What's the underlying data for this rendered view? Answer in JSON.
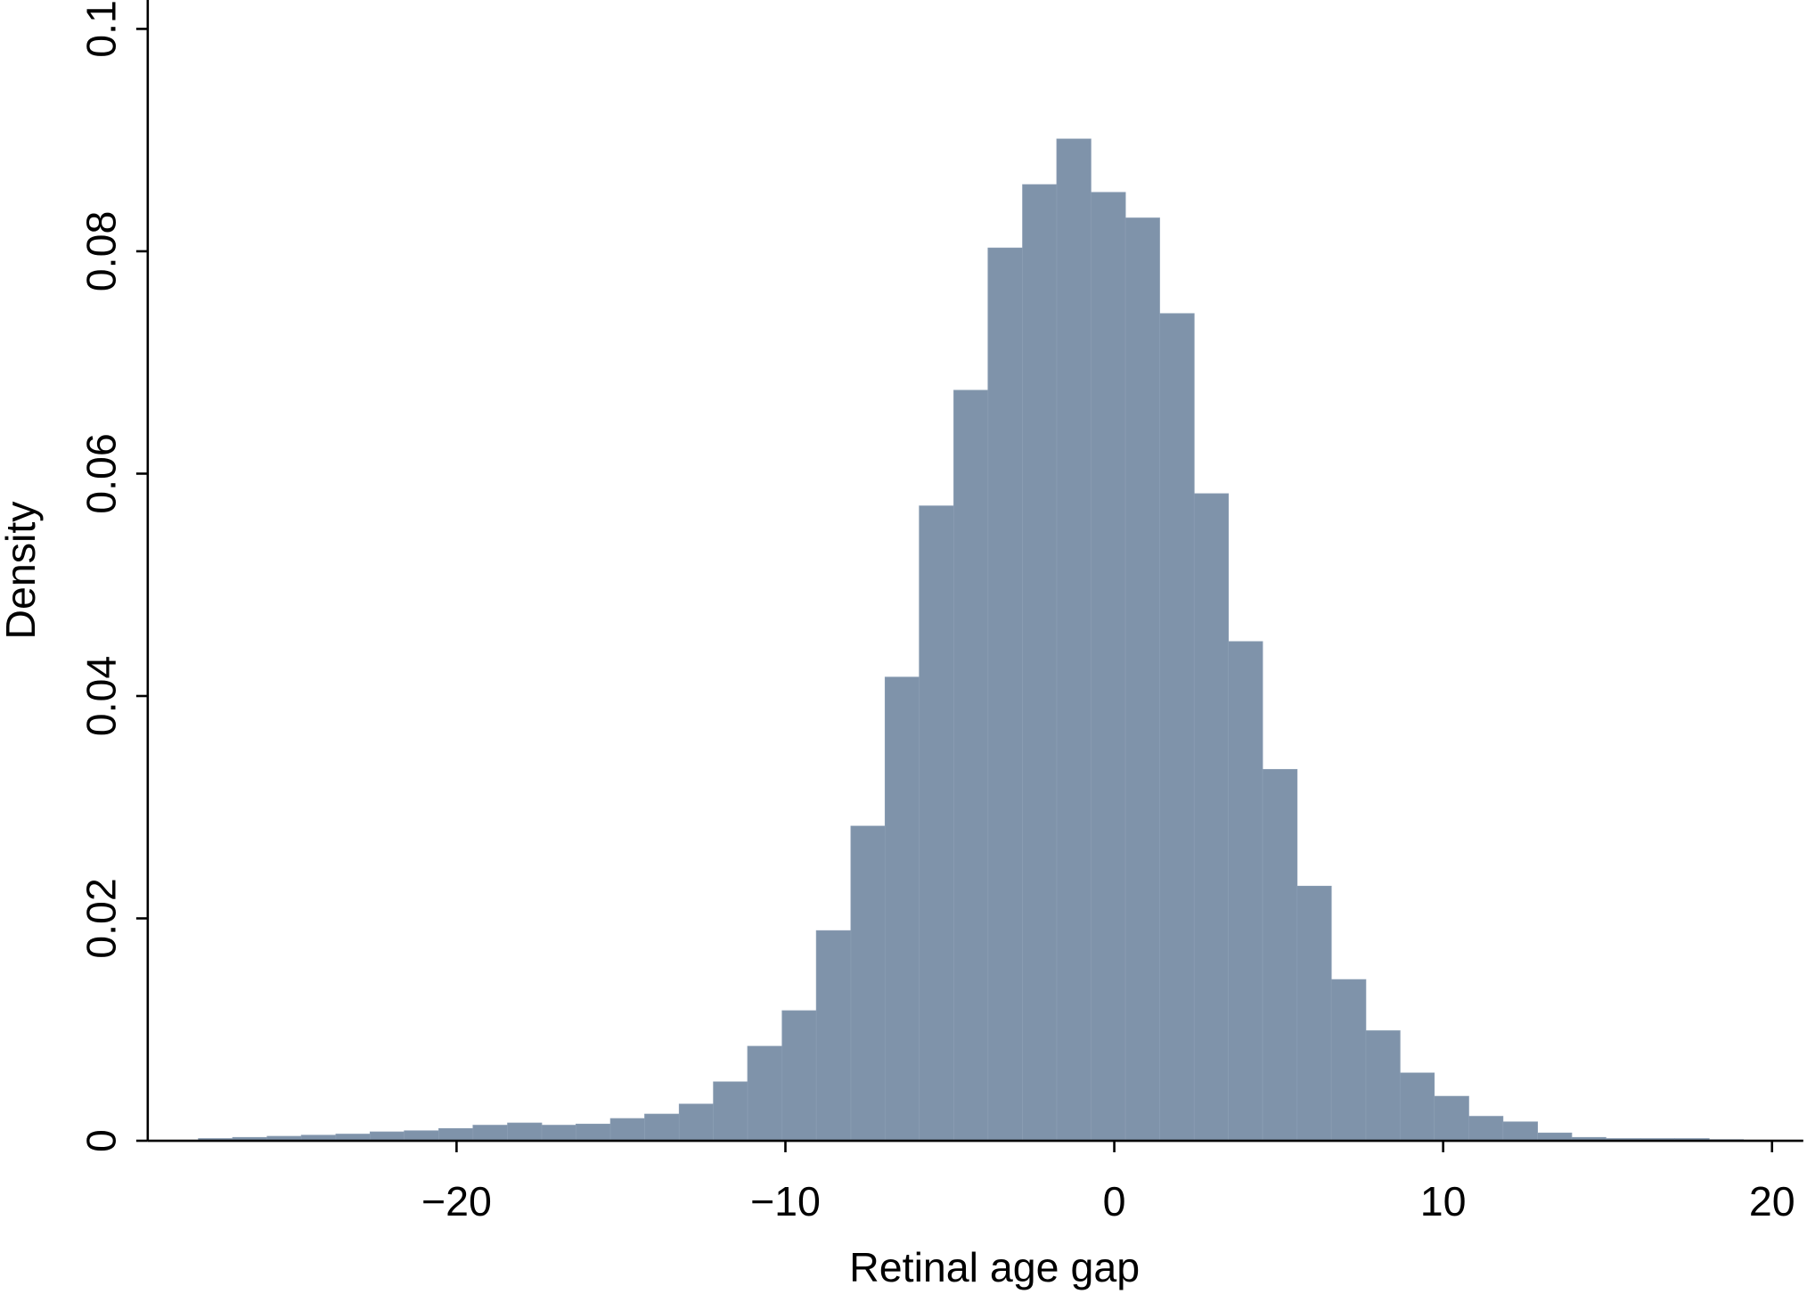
{
  "chart_data": {
    "type": "histogram",
    "x_label": "Retinal age gap",
    "y_label": "Density",
    "bins": [
      -27.85,
      -26.81,
      -25.76,
      -24.72,
      -23.67,
      -22.63,
      -21.59,
      -20.54,
      -19.5,
      -18.45,
      -17.41,
      -16.37,
      -15.32,
      -14.28,
      -13.23,
      -12.19,
      -11.15,
      -10.1,
      -9.06,
      -8.01,
      -6.97,
      -5.93,
      -4.88,
      -3.84,
      -2.79,
      -1.75,
      -0.71,
      0.34,
      1.38,
      2.43,
      3.47,
      4.51,
      5.56,
      6.6,
      7.65,
      8.69,
      9.73,
      10.78,
      11.82,
      12.87,
      13.91,
      14.95,
      16.0,
      17.04,
      18.09,
      19.13
    ],
    "values": [
      0.0002,
      0.0003,
      0.0004,
      0.0005,
      0.0006,
      0.0008,
      0.0009,
      0.0011,
      0.0014,
      0.0016,
      0.0014,
      0.0015,
      0.002,
      0.0024,
      0.0033,
      0.0053,
      0.0085,
      0.0117,
      0.0189,
      0.0283,
      0.0417,
      0.0571,
      0.0675,
      0.0803,
      0.086,
      0.0901,
      0.0853,
      0.083,
      0.0744,
      0.0582,
      0.0449,
      0.0334,
      0.0229,
      0.0145,
      0.0099,
      0.0061,
      0.004,
      0.0022,
      0.0017,
      0.0007,
      0.0003,
      0.0002,
      0.0002,
      0.0002,
      0.0001
    ],
    "color": "#7f93aa",
    "xlim": [
      -29.39,
      20.95
    ],
    "xticks": [
      {
        "value": -20,
        "label": "−20"
      },
      {
        "value": -10,
        "label": "−10"
      },
      0,
      10,
      20
    ],
    "ylim": [
      0,
      0.1026
    ],
    "yticks": [
      0,
      0.02,
      0.04,
      0.06,
      0.08,
      0.1
    ]
  }
}
